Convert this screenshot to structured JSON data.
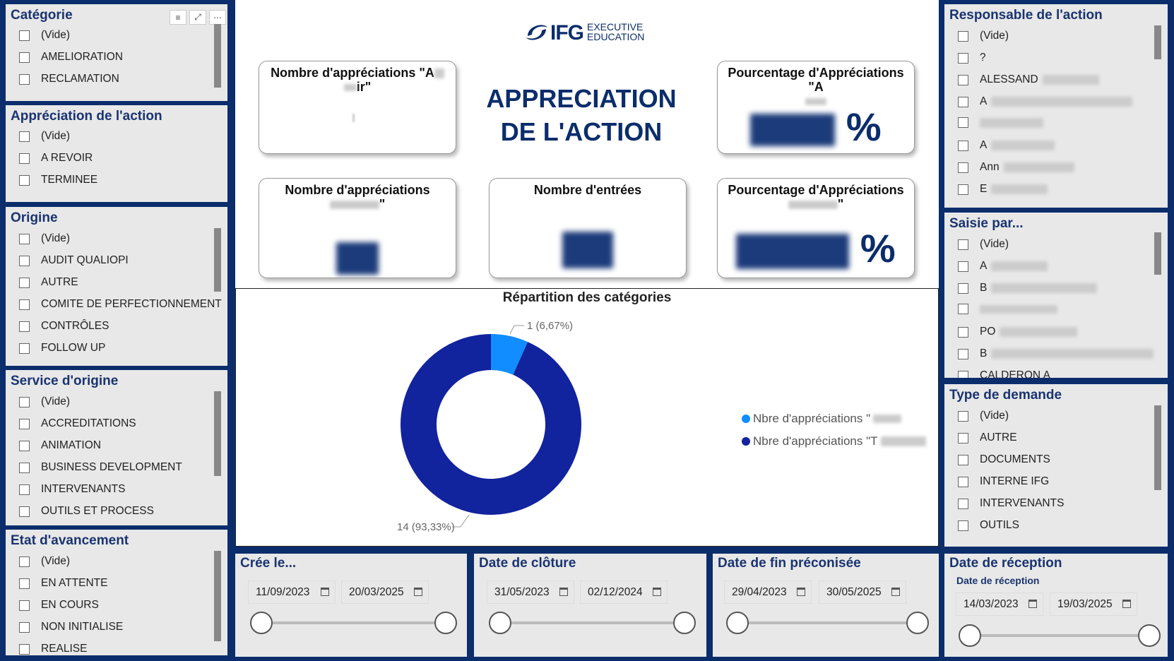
{
  "slicers_left": [
    {
      "title": "Catégorie",
      "items": [
        "(Vide)",
        "AMELIORATION",
        "RECLAMATION"
      ],
      "has_tools": true
    },
    {
      "title": "Appréciation de l'action",
      "items": [
        "(Vide)",
        "A REVOIR",
        "TERMINEE"
      ]
    },
    {
      "title": "Origine",
      "items": [
        "(Vide)",
        "AUDIT QUALIOPI",
        "AUTRE",
        "COMITE DE PERFECTIONNEMENT",
        "CONTRÔLES",
        "FOLLOW UP"
      ]
    },
    {
      "title": "Service d'origine",
      "items": [
        "(Vide)",
        "ACCREDITATIONS",
        "ANIMATION",
        "BUSINESS DEVELOPMENT",
        "INTERVENANTS",
        "OUTILS ET PROCESS"
      ]
    },
    {
      "title": "Etat d'avancement",
      "items": [
        "(Vide)",
        "EN ATTENTE",
        "EN COURS",
        "NON INITIALISE",
        "REALISE"
      ]
    }
  ],
  "slicers_right": [
    {
      "title": "Responsable de l'action",
      "items": [
        "(Vide)",
        "?",
        "ALESSAND",
        "A",
        "",
        "A",
        "Ann",
        "E"
      ]
    },
    {
      "title": "Saisie par...",
      "items": [
        "(Vide)",
        "A",
        "B",
        "",
        "PO",
        "B",
        "CALDERON A"
      ]
    },
    {
      "title": "Type de demande",
      "items": [
        "(Vide)",
        "AUTRE",
        "DOCUMENTS",
        "INTERNE IFG",
        "INTERVENANTS",
        "OUTILS"
      ]
    }
  ],
  "logo": {
    "brand": "IFG",
    "line1": "EXECUTIVE",
    "line2": "EDUCATION"
  },
  "header_title": {
    "line1": "APPRECIATION",
    "line2": "DE L'ACTION"
  },
  "cards": {
    "card1_title": "Nombre d'appréciations \"A",
    "card1_title2": "ir\"",
    "card2_title": "Pourcentage d'Appréciations \"A",
    "card2_value": "%",
    "card3_title": "Nombre d'appréciations",
    "card3_title2": "\"",
    "card4_title": "Nombre d'entrées",
    "card5_title": "Pourcentage d'Appréciations",
    "card5_title2": "\"",
    "card5_value": "%"
  },
  "donut": {
    "title": "Répartition des catégories",
    "label_small": "1 (6,67%)",
    "label_large": "14 (93,33%)",
    "legend": [
      "Nbre d'appréciations \"",
      "Nbre d'appréciations \"T"
    ],
    "colors": [
      "#118dff",
      "#12239e"
    ]
  },
  "chart_data": {
    "type": "pie",
    "title": "Répartition des catégories",
    "values": [
      1,
      14
    ],
    "percent": [
      6.67,
      93.33
    ],
    "colors": [
      "#118dff",
      "#12239e"
    ],
    "legend_position": "right"
  },
  "date_filters": [
    {
      "title": "Crée le...",
      "from": "11/09/2023",
      "to": "20/03/2025"
    },
    {
      "title": "Date de clôture",
      "from": "31/05/2023",
      "to": "02/12/2024"
    },
    {
      "title": "Date de fin préconisée",
      "from": "29/04/2023",
      "to": "30/05/2025"
    },
    {
      "title": "Date de réception",
      "subtitle": "Date de réception",
      "from": "14/03/2023",
      "to": "19/03/2025"
    }
  ],
  "tools": {
    "filter": "≡",
    "focus": "⤢",
    "more": "⋯"
  }
}
